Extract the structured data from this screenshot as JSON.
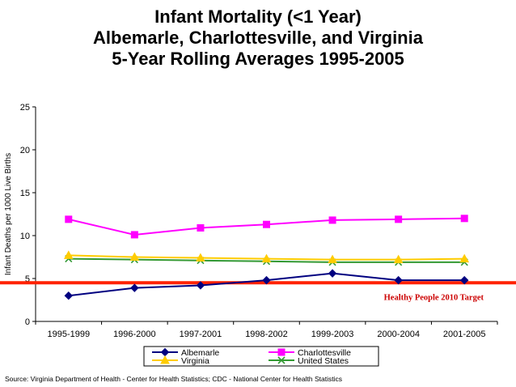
{
  "title_lines": [
    "Infant Mortality (<1 Year)",
    "Albemarle, Charlottesville, and Virginia",
    "5-Year Rolling Averages 1995-2005"
  ],
  "source": "Source: Virginia Department of Health - Center for Health Statistics; CDC - National Center for Health Statistics",
  "chart_data": {
    "type": "line",
    "title": "Infant Mortality (<1 Year) Albemarle, Charlottesville, and Virginia 5-Year Rolling Averages 1995-2005",
    "xlabel": "",
    "ylabel": "Infant Deaths per 1000 Live Births",
    "ylim": [
      0,
      25
    ],
    "yticks": [
      0,
      5,
      10,
      15,
      20,
      25
    ],
    "grid": false,
    "legend_position": "bottom",
    "categories": [
      "1995-1999",
      "1996-2000",
      "1997-2001",
      "1998-2002",
      "1999-2003",
      "2000-2004",
      "2001-2005"
    ],
    "series": [
      {
        "name": "Albemarle",
        "color": "#000080",
        "marker": "diamond",
        "values": [
          3.0,
          3.9,
          4.2,
          4.8,
          5.6,
          4.8,
          4.8
        ]
      },
      {
        "name": "Charlottesville",
        "color": "#ff00ff",
        "marker": "square",
        "values": [
          11.9,
          10.1,
          10.9,
          11.3,
          11.8,
          11.9,
          12.0
        ]
      },
      {
        "name": "Virginia",
        "color": "#ffcc00",
        "marker": "triangle",
        "values": [
          7.7,
          7.5,
          7.4,
          7.3,
          7.2,
          7.2,
          7.3
        ]
      },
      {
        "name": "United States",
        "color": "#339933",
        "marker": "x",
        "values": [
          7.3,
          7.2,
          7.1,
          7.0,
          6.9,
          6.9,
          6.9
        ]
      }
    ],
    "target": {
      "label": "Healthy People 2010 Target",
      "value": 4.5,
      "color": "#ff2200",
      "label_color": "#cc0000"
    }
  }
}
